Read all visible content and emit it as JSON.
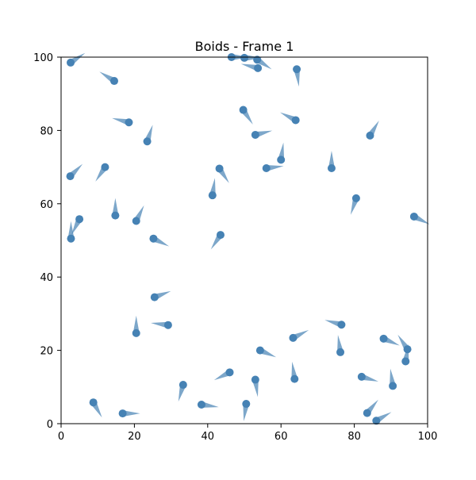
{
  "chart_data": {
    "type": "scatter",
    "title": "Boids - Frame 1",
    "xlabel": "",
    "ylabel": "",
    "xlim": [
      0,
      100
    ],
    "ylim": [
      0,
      100
    ],
    "xticks": [
      "0",
      "20",
      "40",
      "60",
      "80",
      "100"
    ],
    "yticks": [
      "0",
      "20",
      "40",
      "60",
      "80",
      "100"
    ],
    "grid": false,
    "colors": {
      "point": "#4682b4",
      "arrow": "#4682b4"
    },
    "points": [
      {
        "x": 2.6,
        "y": 98.5,
        "vx": 3,
        "vy": 2
      },
      {
        "x": 14.5,
        "y": 93.5,
        "vx": -4,
        "vy": 2.5
      },
      {
        "x": 18.5,
        "y": 82.2,
        "vx": -4,
        "vy": 1
      },
      {
        "x": 23.5,
        "y": 77,
        "vx": 1,
        "vy": 3
      },
      {
        "x": 12,
        "y": 70,
        "vx": -2,
        "vy": -3
      },
      {
        "x": 2.5,
        "y": 67.5,
        "vx": 2,
        "vy": 2
      },
      {
        "x": 5,
        "y": 55.8,
        "vx": -1.5,
        "vy": -3
      },
      {
        "x": 2.7,
        "y": 50.5,
        "vx": 0,
        "vy": 4
      },
      {
        "x": 14.8,
        "y": 56.8,
        "vx": 0,
        "vy": 4
      },
      {
        "x": 20.5,
        "y": 55.3,
        "vx": 1.5,
        "vy": 3
      },
      {
        "x": 25.2,
        "y": 50.5,
        "vx": 3,
        "vy": -1.5
      },
      {
        "x": 46.5,
        "y": 100,
        "vx": 3,
        "vy": 0
      },
      {
        "x": 50,
        "y": 99.8,
        "vx": 3.5,
        "vy": 0
      },
      {
        "x": 53.5,
        "y": 99.3,
        "vx": 3,
        "vy": -2
      },
      {
        "x": 53.7,
        "y": 97,
        "vx": -4,
        "vy": 1
      },
      {
        "x": 64.3,
        "y": 96.7,
        "vx": 0.5,
        "vy": -4
      },
      {
        "x": 49.7,
        "y": 85.6,
        "vx": 2,
        "vy": -3
      },
      {
        "x": 64,
        "y": 82.8,
        "vx": -3,
        "vy": 1.5
      },
      {
        "x": 53,
        "y": 78.8,
        "vx": 4,
        "vy": 1
      },
      {
        "x": 60,
        "y": 72,
        "vx": 0.5,
        "vy": 3.5
      },
      {
        "x": 56,
        "y": 69.7,
        "vx": 4,
        "vy": 0.5
      },
      {
        "x": 43.2,
        "y": 69.6,
        "vx": 2,
        "vy": -3
      },
      {
        "x": 41.3,
        "y": 62.3,
        "vx": 0.5,
        "vy": 3.5
      },
      {
        "x": 43.5,
        "y": 51.5,
        "vx": -2,
        "vy": -3
      },
      {
        "x": 73.8,
        "y": 69.7,
        "vx": 0,
        "vy": 4
      },
      {
        "x": 84.3,
        "y": 78.6,
        "vx": 1.5,
        "vy": 2.5
      },
      {
        "x": 80.5,
        "y": 61.5,
        "vx": -1,
        "vy": -3
      },
      {
        "x": 96.3,
        "y": 56.5,
        "vx": 3,
        "vy": -1.5
      },
      {
        "x": 25.5,
        "y": 34.5,
        "vx": 4,
        "vy": 1.5
      },
      {
        "x": 29.2,
        "y": 26.9,
        "vx": -4,
        "vy": 0.5
      },
      {
        "x": 20.5,
        "y": 24.7,
        "vx": 0,
        "vy": 3.5
      },
      {
        "x": 33.3,
        "y": 10.6,
        "vx": -1,
        "vy": -3.5
      },
      {
        "x": 38.3,
        "y": 5.2,
        "vx": 3.5,
        "vy": -0.5
      },
      {
        "x": 46,
        "y": 14,
        "vx": -3,
        "vy": -1.5
      },
      {
        "x": 50.5,
        "y": 5.4,
        "vx": -0.5,
        "vy": -3.5
      },
      {
        "x": 53,
        "y": 12,
        "vx": 0.5,
        "vy": -3.5
      },
      {
        "x": 54.3,
        "y": 20,
        "vx": 3.5,
        "vy": -1.5
      },
      {
        "x": 63.3,
        "y": 23.4,
        "vx": 3,
        "vy": 1.5
      },
      {
        "x": 63.7,
        "y": 12.2,
        "vx": -0.5,
        "vy": 3.5
      },
      {
        "x": 76.5,
        "y": 27,
        "vx": -3.5,
        "vy": 1
      },
      {
        "x": 76.2,
        "y": 19.5,
        "vx": -0.5,
        "vy": 3.5
      },
      {
        "x": 82,
        "y": 12.8,
        "vx": 3.5,
        "vy": -1
      },
      {
        "x": 88,
        "y": 23.2,
        "vx": 3.5,
        "vy": -1.5
      },
      {
        "x": 94.5,
        "y": 20.3,
        "vx": -2,
        "vy": 3
      },
      {
        "x": 94,
        "y": 17,
        "vx": 0.5,
        "vy": 3
      },
      {
        "x": 90.5,
        "y": 10.3,
        "vx": -0.5,
        "vy": 3.5
      },
      {
        "x": 83.5,
        "y": 2.9,
        "vx": 2.5,
        "vy": 3
      },
      {
        "x": 86,
        "y": 0.8,
        "vx": 3.5,
        "vy": 2
      },
      {
        "x": 8.8,
        "y": 5.8,
        "vx": 2,
        "vy": -3.5
      },
      {
        "x": 16.8,
        "y": 2.8,
        "vx": 4,
        "vy": 0
      }
    ]
  }
}
